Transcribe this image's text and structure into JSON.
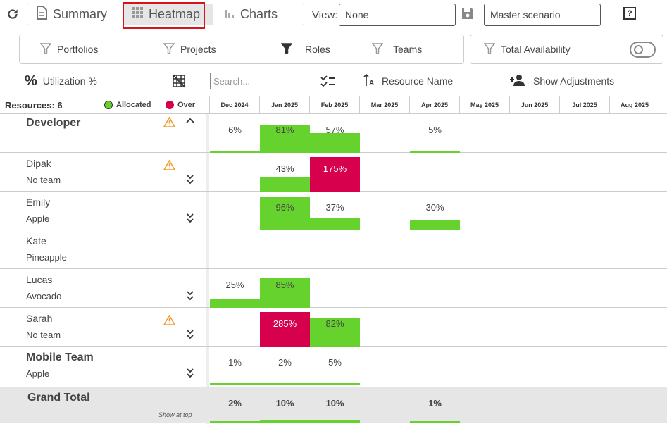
{
  "toolbar": {
    "tabs": [
      {
        "label": "Summary",
        "icon": "document-icon"
      },
      {
        "label": "Heatmap",
        "icon": "grid-icon"
      },
      {
        "label": "Charts",
        "icon": "bar-chart-icon"
      }
    ],
    "view_label": "View:",
    "view_value": "None",
    "scenario_value": "Master scenario"
  },
  "filters": {
    "items": [
      "Portfolios",
      "Projects",
      "Roles",
      "Teams"
    ],
    "availability_label": "Total Availability"
  },
  "options": {
    "utilization_label": "Utilization %",
    "search_placeholder": "Search...",
    "sort_label": "Resource Name",
    "adjust_label": "Show Adjustments"
  },
  "grid": {
    "resources_label": "Resources: 6",
    "legend_allocated": "Allocated",
    "legend_over": "Over",
    "colors": {
      "allocated": "#66d22e",
      "over": "#d6004c"
    },
    "months": [
      "Dec 2024",
      "Jan 2025",
      "Feb 2025",
      "Mar 2025",
      "Apr 2025",
      "May 2025",
      "Jun 2025",
      "Jul 2025",
      "Aug 2025"
    ],
    "rows": [
      {
        "name": "Developer",
        "sub": "",
        "group": true,
        "warn": true,
        "chevron": "up",
        "cells": [
          {
            "m": 0,
            "text": "6%",
            "fill": 0.06,
            "over": false
          },
          {
            "m": 1,
            "text": "81%",
            "fill": 0.81,
            "over": false
          },
          {
            "m": 2,
            "text": "57%",
            "fill": 0.57,
            "over": false
          },
          {
            "m": 4,
            "text": "5%",
            "fill": 0.05,
            "over": false
          }
        ]
      },
      {
        "name": "Dipak",
        "sub": "No team",
        "group": false,
        "warn": true,
        "chevron": "down",
        "cells": [
          {
            "m": 1,
            "text": "43%",
            "fill": 0.43,
            "over": false
          },
          {
            "m": 2,
            "text": "175%",
            "fill": 1,
            "over": true
          }
        ]
      },
      {
        "name": "Emily",
        "sub": "Apple",
        "group": false,
        "warn": false,
        "chevron": "down",
        "cells": [
          {
            "m": 1,
            "text": "96%",
            "fill": 0.96,
            "over": false
          },
          {
            "m": 2,
            "text": "37%",
            "fill": 0.37,
            "over": false
          },
          {
            "m": 4,
            "text": "30%",
            "fill": 0.3,
            "over": false
          }
        ]
      },
      {
        "name": "Kate",
        "sub": "Pineapple",
        "group": false,
        "warn": false,
        "chevron": "",
        "cells": []
      },
      {
        "name": "Lucas",
        "sub": "Avocado",
        "group": false,
        "warn": false,
        "chevron": "down",
        "cells": [
          {
            "m": 0,
            "text": "25%",
            "fill": 0.25,
            "over": false
          },
          {
            "m": 1,
            "text": "85%",
            "fill": 0.85,
            "over": false
          }
        ]
      },
      {
        "name": "Sarah",
        "sub": "No team",
        "group": false,
        "warn": true,
        "chevron": "down",
        "cells": [
          {
            "m": 1,
            "text": "285%",
            "fill": 1,
            "over": true
          },
          {
            "m": 2,
            "text": "82%",
            "fill": 0.82,
            "over": false
          }
        ]
      },
      {
        "name": "Mobile Team",
        "sub": "Apple",
        "group": true,
        "warn": false,
        "chevron": "down",
        "cells": [
          {
            "m": 0,
            "text": "1%",
            "fill": 0.01,
            "over": false
          },
          {
            "m": 1,
            "text": "2%",
            "fill": 0.02,
            "over": false
          },
          {
            "m": 2,
            "text": "5%",
            "fill": 0.05,
            "over": false
          }
        ]
      }
    ],
    "total": {
      "name": "Grand Total",
      "link": "Show at top",
      "cells": [
        {
          "m": 0,
          "text": "2%",
          "fill": 0.02,
          "over": false
        },
        {
          "m": 1,
          "text": "10%",
          "fill": 0.1,
          "over": false
        },
        {
          "m": 2,
          "text": "10%",
          "fill": 0.1,
          "over": false
        },
        {
          "m": 4,
          "text": "1%",
          "fill": 0.01,
          "over": false
        }
      ]
    }
  }
}
